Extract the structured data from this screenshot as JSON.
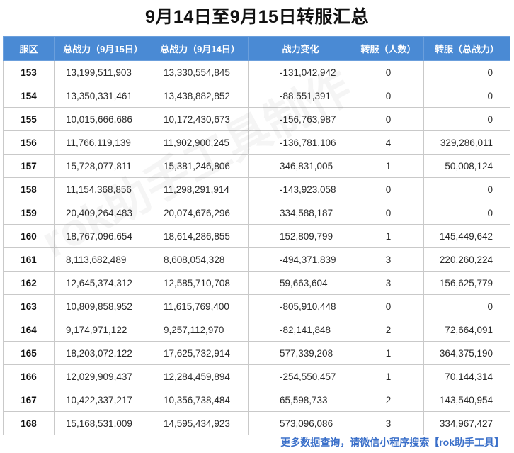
{
  "title": "9月14日至9月15日转服汇总",
  "columns": [
    "服区",
    "总战力（9月15日）",
    "总战力（9月14日）",
    "战力变化",
    "转服（人数）",
    "转服（总战力）"
  ],
  "rows": [
    [
      "153",
      "13,199,511,903",
      "13,330,554,845",
      "-131,042,942",
      "0",
      "0"
    ],
    [
      "154",
      "13,350,331,461",
      "13,438,882,852",
      "-88,551,391",
      "0",
      "0"
    ],
    [
      "155",
      "10,015,666,686",
      "10,172,430,673",
      "-156,763,987",
      "0",
      "0"
    ],
    [
      "156",
      "11,766,119,139",
      "11,902,900,245",
      "-136,781,106",
      "4",
      "329,286,011"
    ],
    [
      "157",
      "15,728,077,811",
      "15,381,246,806",
      "346,831,005",
      "1",
      "50,008,124"
    ],
    [
      "158",
      "11,154,368,856",
      "11,298,291,914",
      "-143,923,058",
      "0",
      "0"
    ],
    [
      "159",
      "20,409,264,483",
      "20,074,676,296",
      "334,588,187",
      "0",
      "0"
    ],
    [
      "160",
      "18,767,096,654",
      "18,614,286,855",
      "152,809,799",
      "1",
      "145,449,642"
    ],
    [
      "161",
      "8,113,682,489",
      "8,608,054,328",
      "-494,371,839",
      "3",
      "220,260,224"
    ],
    [
      "162",
      "12,645,374,312",
      "12,585,710,708",
      "59,663,604",
      "3",
      "156,625,779"
    ],
    [
      "163",
      "10,809,858,952",
      "11,615,769,400",
      "-805,910,448",
      "0",
      "0"
    ],
    [
      "164",
      "9,174,971,122",
      "9,257,112,970",
      "-82,141,848",
      "2",
      "72,664,091"
    ],
    [
      "165",
      "18,203,072,122",
      "17,625,732,914",
      "577,339,208",
      "1",
      "364,375,190"
    ],
    [
      "166",
      "12,029,909,437",
      "12,284,459,894",
      "-254,550,457",
      "1",
      "70,144,314"
    ],
    [
      "167",
      "10,422,337,217",
      "10,356,738,484",
      "65,598,733",
      "2",
      "143,540,954"
    ],
    [
      "168",
      "15,168,531,009",
      "14,595,434,923",
      "573,096,086",
      "3",
      "334,967,427"
    ]
  ],
  "watermark": "rok助手工具制作",
  "footer": "更多数据查询，请微信小程序搜索【rok助手工具】",
  "colors": {
    "header_bg": "#4a8ad4",
    "header_text": "#ffffff",
    "footer_text": "#3a6fc9",
    "grid": "#c9c9c9"
  }
}
